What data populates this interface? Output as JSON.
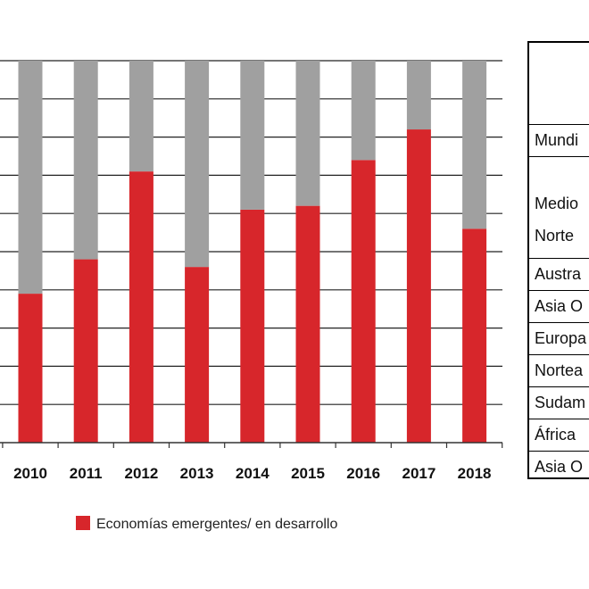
{
  "chart_data": {
    "type": "bar",
    "stacked": true,
    "categories": [
      "2010",
      "2011",
      "2012",
      "2013",
      "2014",
      "2015",
      "2016",
      "2017",
      "2018"
    ],
    "ylim": [
      0,
      100
    ],
    "grid": true,
    "series": [
      {
        "name": "Economías emergentes/ en desarrollo",
        "values": [
          39,
          48,
          71,
          46,
          61,
          62,
          74,
          82,
          56
        ],
        "color": "#d7262b"
      },
      {
        "name": "",
        "values": [
          61,
          52,
          29,
          54,
          39,
          38,
          26,
          18,
          44
        ],
        "color": "#a0a0a0"
      }
    ],
    "legend": {
      "position": "bottom",
      "label": "Economías emergentes/ en desarrollo"
    }
  },
  "region_table": {
    "rows": [
      {
        "lines": [
          ""
        ]
      },
      {
        "lines": [
          "Mundi"
        ]
      },
      {
        "lines": [
          "Medio",
          "Norte"
        ]
      },
      {
        "lines": [
          "Austra"
        ]
      },
      {
        "lines": [
          "Asia O"
        ]
      },
      {
        "lines": [
          "Europa"
        ]
      },
      {
        "lines": [
          "Nortea"
        ]
      },
      {
        "lines": [
          "Sudam"
        ]
      },
      {
        "lines": [
          "África"
        ]
      },
      {
        "lines": [
          "Asia O"
        ]
      }
    ]
  }
}
